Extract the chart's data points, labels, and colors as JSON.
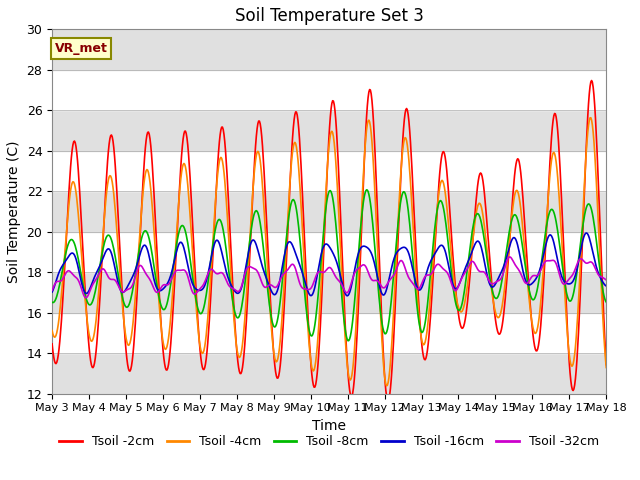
{
  "title": "Soil Temperature Set 3",
  "xlabel": "Time",
  "ylabel": "Soil Temperature (C)",
  "ylim": [
    12,
    30
  ],
  "yticks": [
    12,
    14,
    16,
    18,
    20,
    22,
    24,
    26,
    28,
    30
  ],
  "line_colors": [
    "#ff0000",
    "#ff8800",
    "#00bb00",
    "#0000cc",
    "#cc00cc"
  ],
  "line_labels": [
    "Tsoil -2cm",
    "Tsoil -4cm",
    "Tsoil -8cm",
    "Tsoil -16cm",
    "Tsoil -32cm"
  ],
  "annotation_text": "VR_met",
  "annotation_fg": "#880000",
  "annotation_bg": "#ffffcc",
  "annotation_edge": "#888800",
  "n_days": 15,
  "start_day": 3,
  "points_per_day": 48,
  "title_fontsize": 12,
  "label_fontsize": 10,
  "tick_fontsize": 9,
  "legend_fontsize": 9,
  "fig_width": 6.4,
  "fig_height": 4.8,
  "dpi": 100
}
